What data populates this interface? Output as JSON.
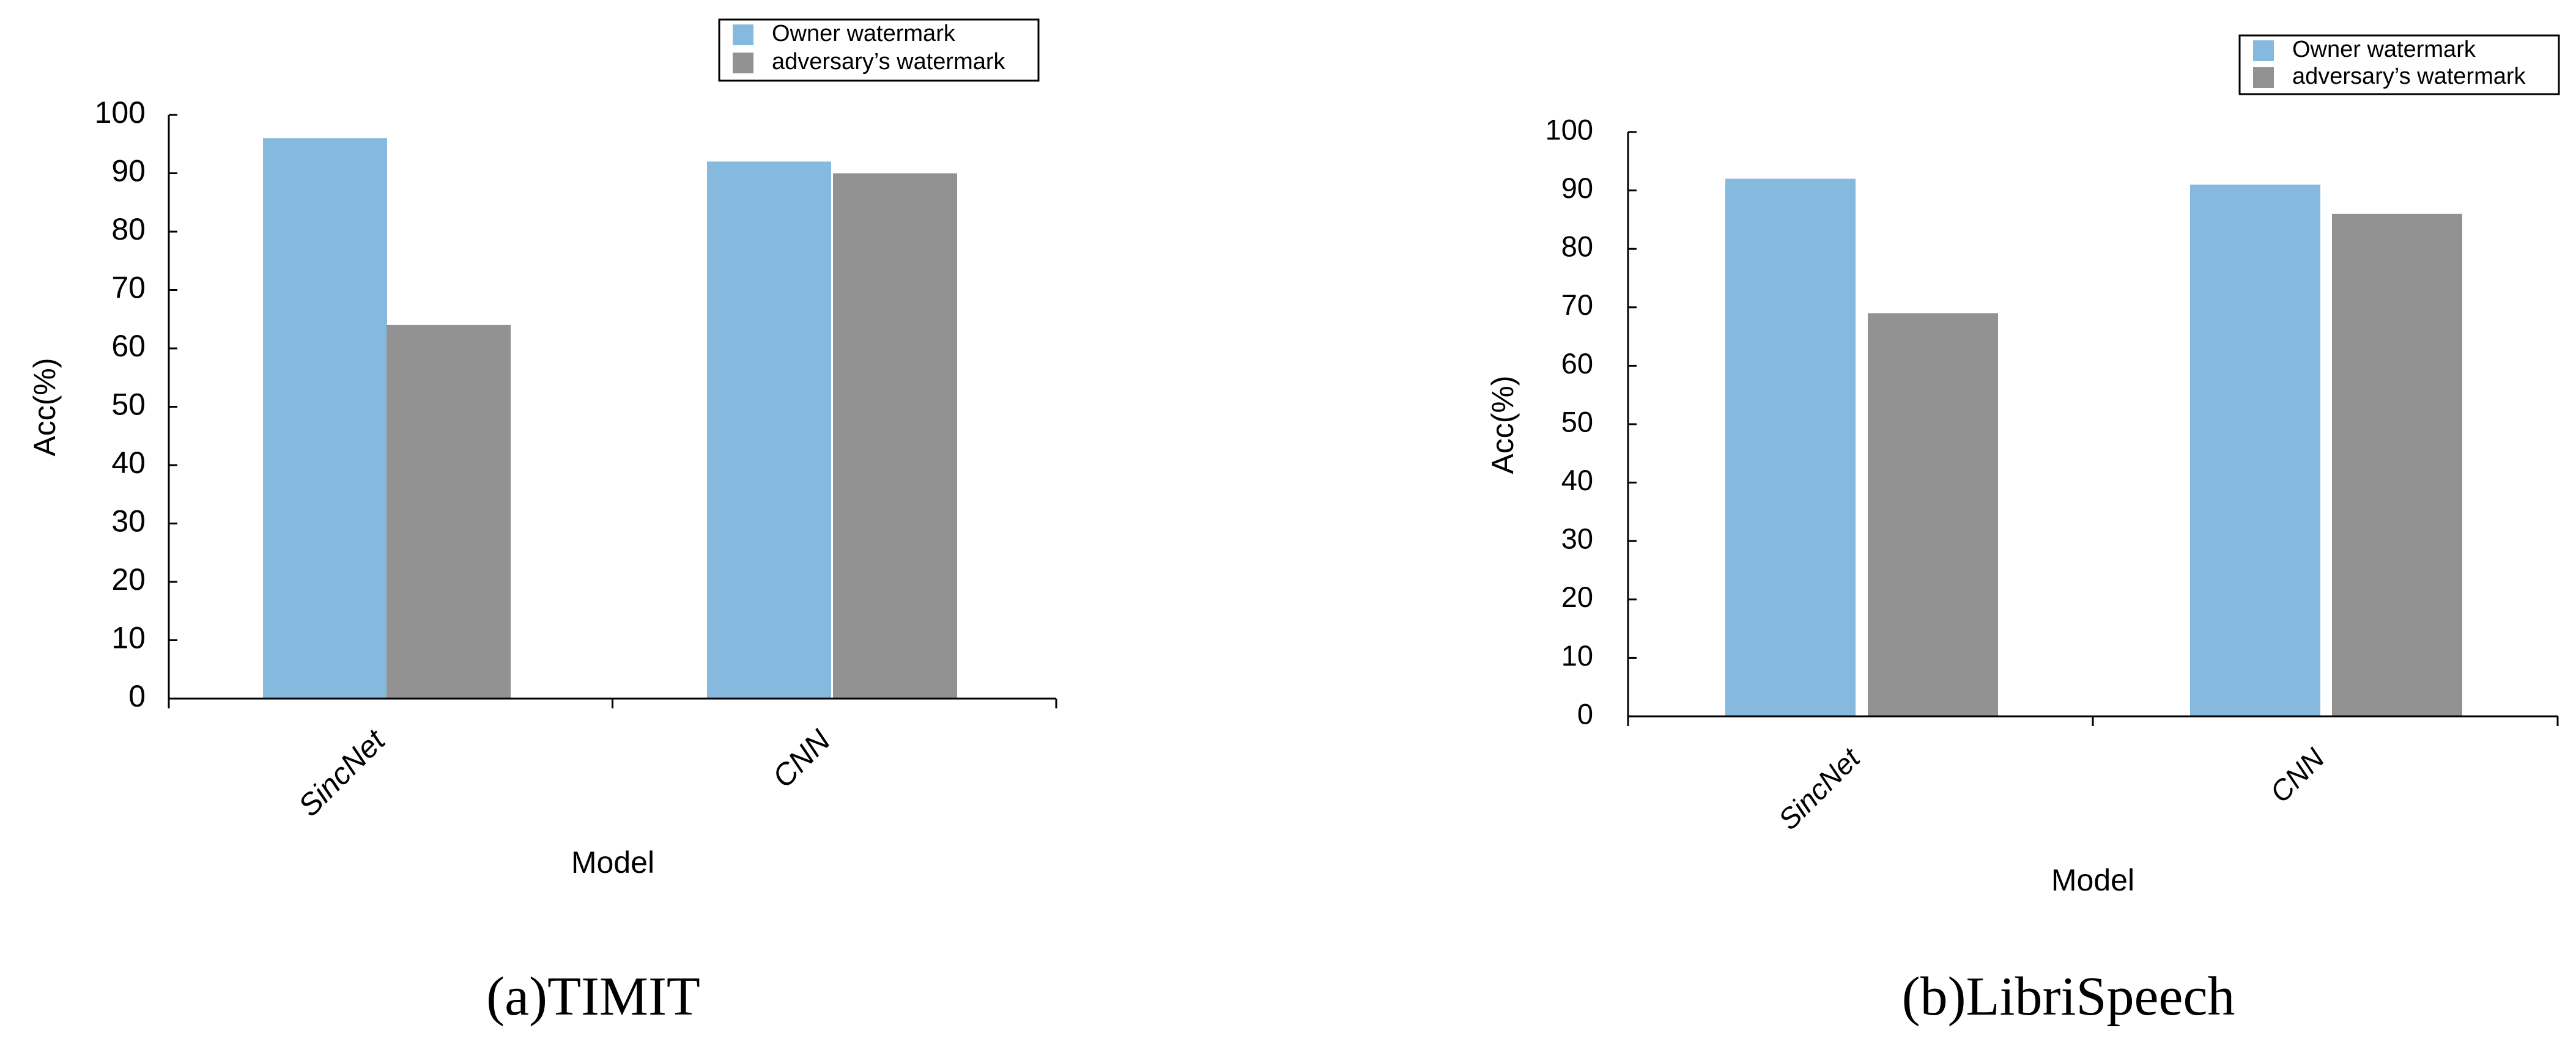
{
  "chart_data": [
    {
      "type": "bar",
      "caption": "(a)TIMIT",
      "categories": [
        "SincNet",
        "CNN"
      ],
      "series": [
        {
          "name": "Owner watermark",
          "values": [
            96,
            92
          ]
        },
        {
          "name": "adversary’s watermark",
          "values": [
            64,
            90
          ]
        }
      ],
      "xlabel": "Model",
      "ylabel": "Acc(%)",
      "ylim": [
        0,
        100
      ],
      "yticks": [
        0,
        10,
        20,
        30,
        40,
        50,
        60,
        70,
        80,
        90,
        100
      ],
      "grid": false,
      "legend": "top-right",
      "colors": [
        "#85b9de",
        "#929292"
      ]
    },
    {
      "type": "bar",
      "caption": "(b)LibriSpeech",
      "categories": [
        "SincNet",
        "CNN"
      ],
      "series": [
        {
          "name": "Owner watermark",
          "values": [
            92,
            91
          ]
        },
        {
          "name": "adversary’s watermark",
          "values": [
            69,
            86
          ]
        }
      ],
      "xlabel": "Model",
      "ylabel": "Acc(%)",
      "ylim": [
        0,
        100
      ],
      "yticks": [
        0,
        10,
        20,
        30,
        40,
        50,
        60,
        70,
        80,
        90,
        100
      ],
      "grid": false,
      "legend": "top-right",
      "colors": [
        "#85b9de",
        "#929292"
      ]
    }
  ]
}
